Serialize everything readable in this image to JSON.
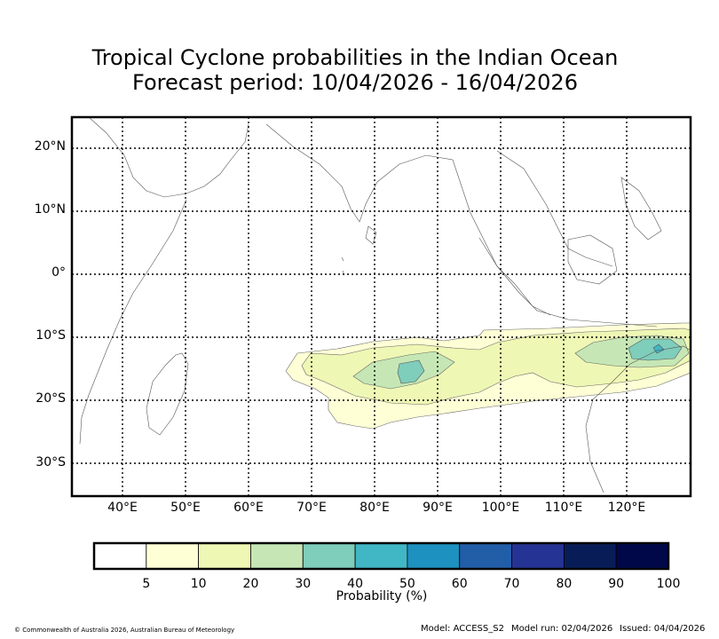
{
  "title_line1": "Tropical Cyclone probabilities in the Indian Ocean",
  "title_line2": "Forecast period: 10/04/2026 - 16/04/2026",
  "lat_labels": [
    "20°N",
    "10°N",
    "0°",
    "10°S",
    "20°S",
    "30°S"
  ],
  "lon_labels": [
    "40°E",
    "50°E",
    "60°E",
    "70°E",
    "80°E",
    "90°E",
    "100°E",
    "110°E",
    "120°E"
  ],
  "colorbar": {
    "label": "Probability (%)",
    "ticks": [
      "5",
      "10",
      "20",
      "30",
      "40",
      "50",
      "60",
      "70",
      "80",
      "90",
      "100"
    ],
    "colors": [
      "#ffffff",
      "#ffffd6",
      "#eef7b4",
      "#c6e7b5",
      "#7fcdbb",
      "#41b6c4",
      "#1d91c0",
      "#225ea8",
      "#253494",
      "#081d58",
      "#00084a"
    ]
  },
  "footer": {
    "copyright": "© Commonwealth of Australia 2026, Australian Bureau of Meteorology",
    "model": "Model: ACCESS_S2",
    "model_run": "Model run: 02/04/2026",
    "issued": "Issued: 04/04/2026"
  }
}
